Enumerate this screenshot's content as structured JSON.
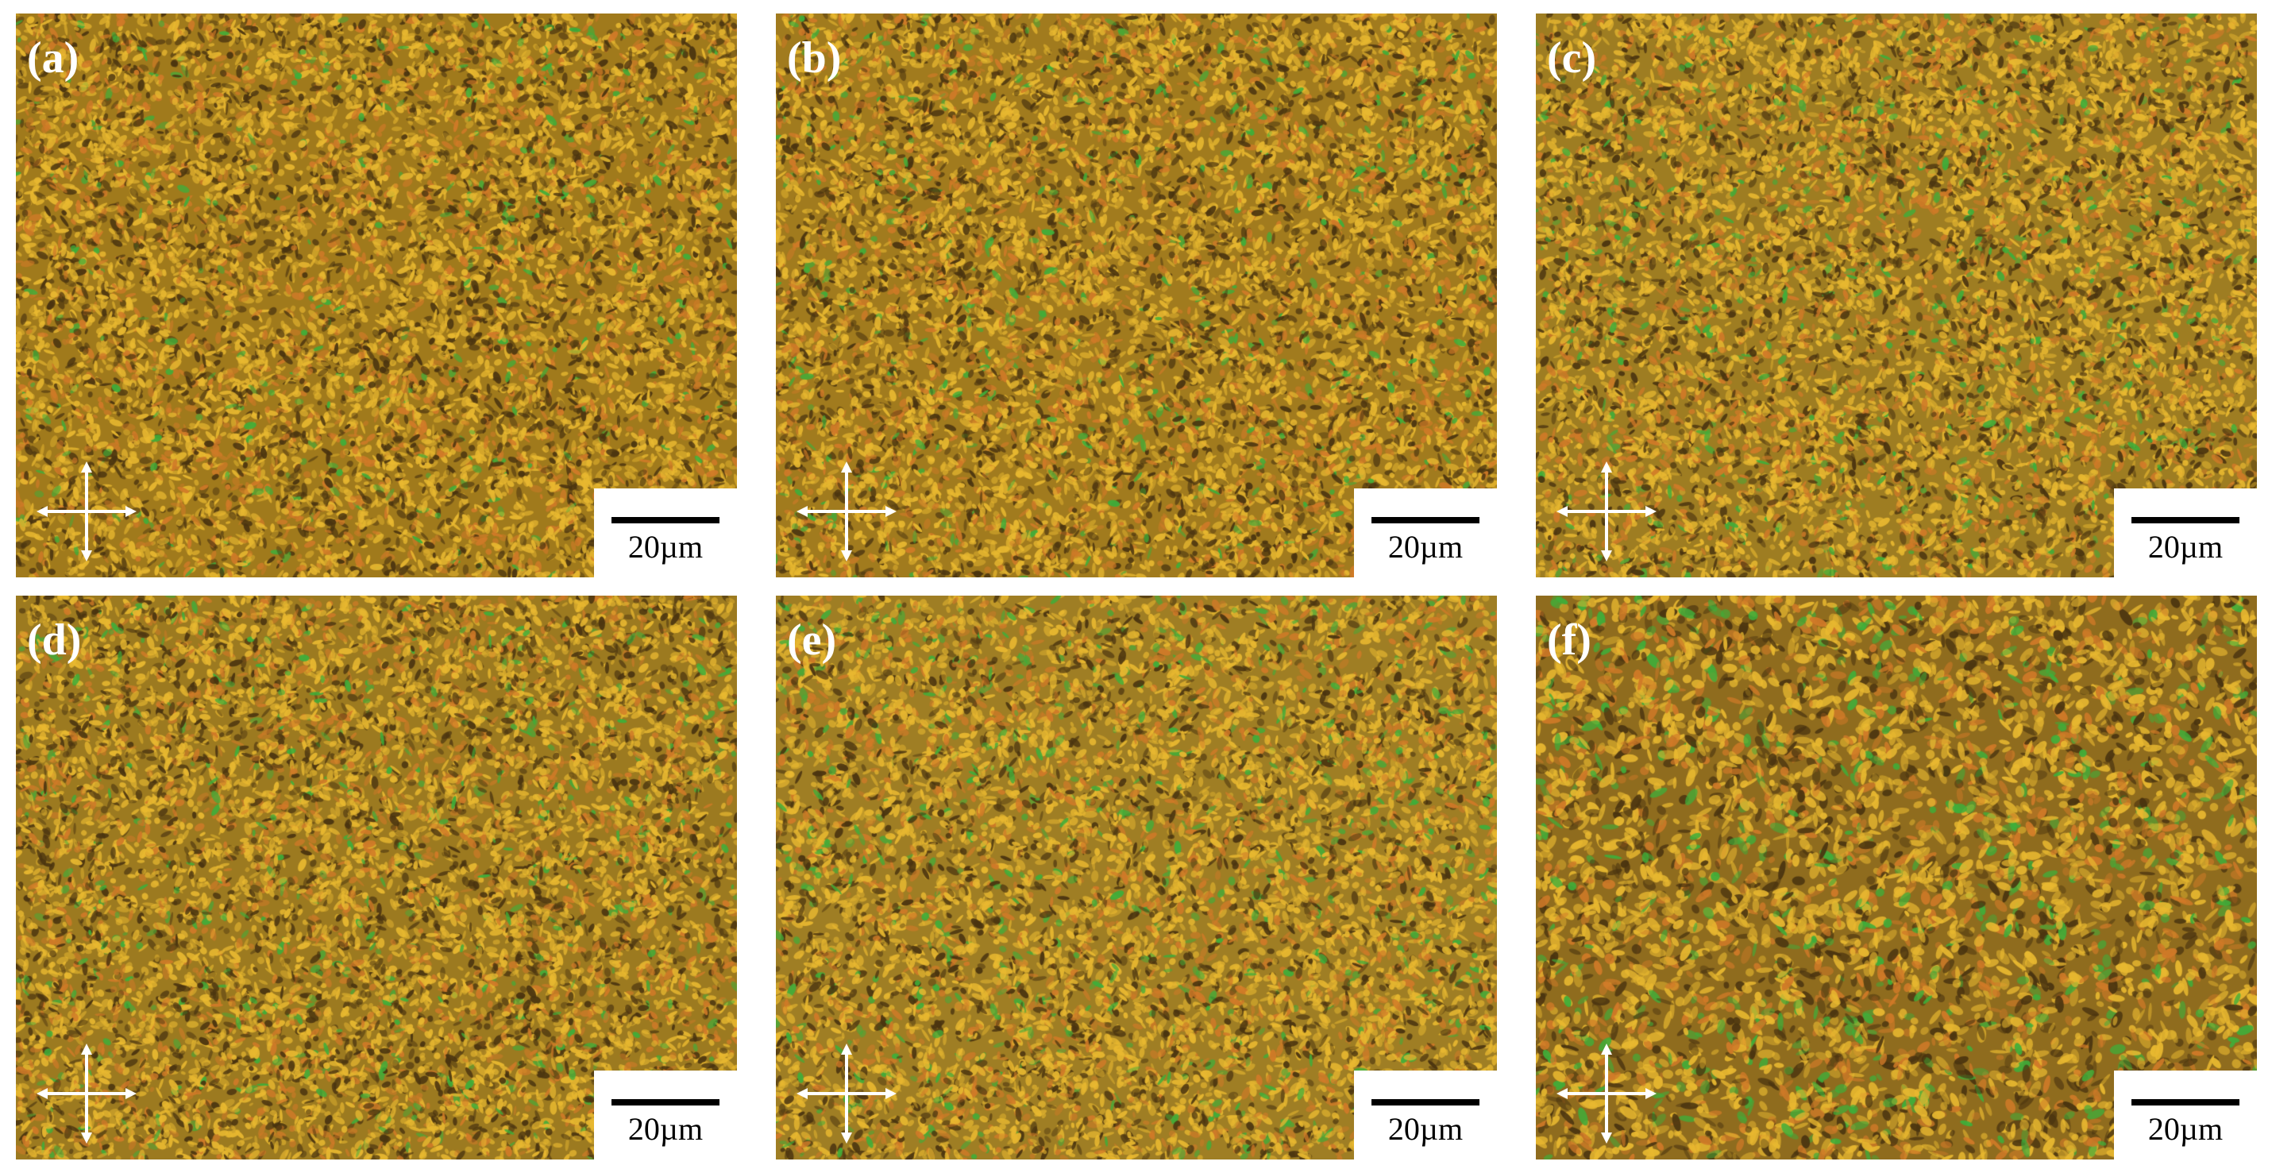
{
  "figure": {
    "background": "#ffffff",
    "panels": [
      {
        "label": "(a)",
        "scale_text": "20µm",
        "texture": {
          "base": "#a07a1c",
          "seed": 11,
          "green_ratio": 0.04,
          "grain_scale": 1.0
        }
      },
      {
        "label": "(b)",
        "scale_text": "20µm",
        "texture": {
          "base": "#a17b1e",
          "seed": 23,
          "green_ratio": 0.05,
          "grain_scale": 1.0
        }
      },
      {
        "label": "(c)",
        "scale_text": "20µm",
        "texture": {
          "base": "#9e7d22",
          "seed": 37,
          "green_ratio": 0.06,
          "grain_scale": 1.0
        }
      },
      {
        "label": "(d)",
        "scale_text": "20µm",
        "texture": {
          "base": "#9c7a20",
          "seed": 41,
          "green_ratio": 0.06,
          "grain_scale": 1.0
        }
      },
      {
        "label": "(e)",
        "scale_text": "20µm",
        "texture": {
          "base": "#9f7e24",
          "seed": 53,
          "green_ratio": 0.08,
          "grain_scale": 1.05
        }
      },
      {
        "label": "(f)",
        "scale_text": "20µm",
        "texture": {
          "base": "#8f6c1e",
          "seed": 67,
          "green_ratio": 0.1,
          "grain_scale": 1.35
        }
      }
    ],
    "icons": {
      "polarizer": "crossed-polarizers-icon"
    },
    "colors": {
      "label_text": "#ffffff",
      "arrow": "#ffffff",
      "scalebar_bg": "#ffffff",
      "scalebar_line": "#000000",
      "grain_yellow": "#e8b830",
      "grain_orange": "#d07a28",
      "grain_green": "#3fae3a",
      "grain_dark": "#4a3410"
    }
  }
}
